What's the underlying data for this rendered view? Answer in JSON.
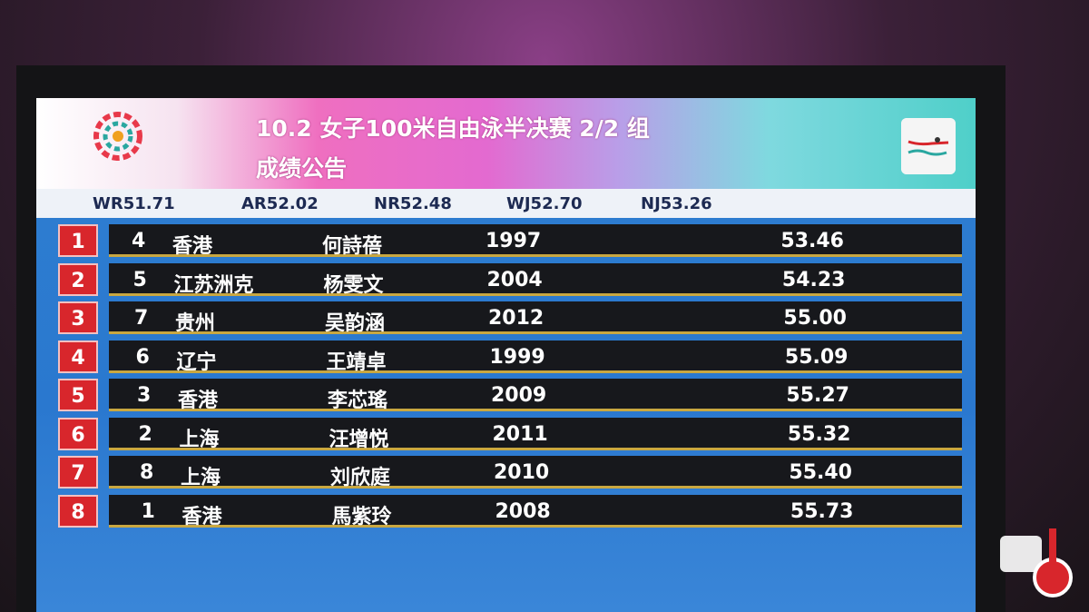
{
  "header": {
    "title": "10.2 女子100米自由泳半决赛 2/2 组",
    "subtitle": "成绩公告"
  },
  "records": [
    "WR51.71",
    "AR52.02",
    "NR52.48",
    "WJ52.70",
    "NJ53.26"
  ],
  "table": {
    "rows": [
      [
        "1",
        "4",
        "香港",
        "何詩蓓",
        "1997",
        "53.46"
      ],
      [
        "2",
        "5",
        "江苏洲克",
        "杨雯文",
        "2004",
        "54.23"
      ],
      [
        "3",
        "7",
        "贵州",
        "吴韵涵",
        "2012",
        "55.00"
      ],
      [
        "4",
        "6",
        "辽宁",
        "王靖卓",
        "1999",
        "55.09"
      ],
      [
        "5",
        "3",
        "香港",
        "李芯瑤",
        "2009",
        "55.27"
      ],
      [
        "6",
        "2",
        "上海",
        "汪增悦",
        "2011",
        "55.32"
      ],
      [
        "7",
        "8",
        "上海",
        "刘欣庭",
        "2010",
        "55.40"
      ],
      [
        "8",
        "1",
        "香港",
        "馬紫玲",
        "2008",
        "55.73"
      ]
    ]
  }
}
